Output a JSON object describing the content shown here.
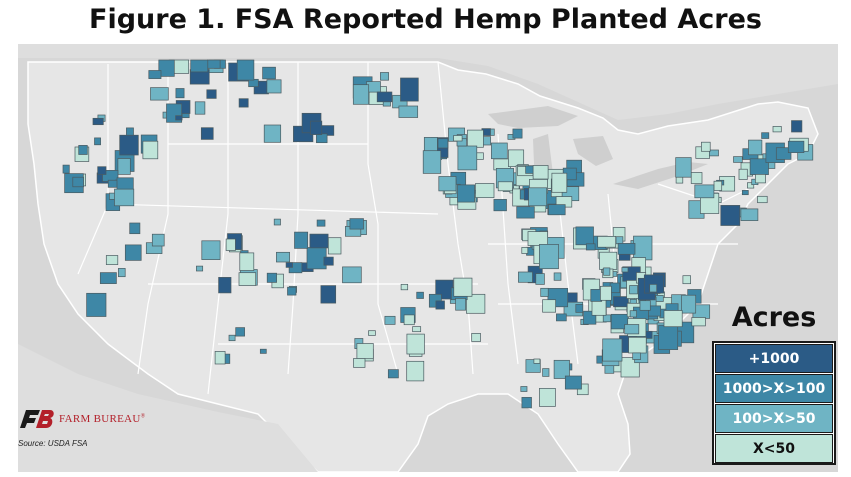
{
  "title": "Figure 1. FSA Reported Hemp Planted Acres",
  "colors": {
    "land": "#e6e6e6",
    "water": "#d2d2d2",
    "borders": "#ffffff",
    "tier_1000_plus": "#2b5b86",
    "tier_100_1000": "#3e87a6",
    "tier_50_100": "#6fb4c4",
    "tier_under_50": "#bfe4d9",
    "county_outline": "#4a5a60"
  },
  "legend": {
    "title": "Acres",
    "items": [
      {
        "label": "+1000",
        "color": "#2b5b86",
        "text_color": "#ffffff"
      },
      {
        "label": "1000>X>100",
        "color": "#3e87a6",
        "text_color": "#ffffff"
      },
      {
        "label": "100>X>50",
        "color": "#6fb4c4",
        "text_color": "#ffffff"
      },
      {
        "label": "X<50",
        "color": "#bfe4d9",
        "text_color": "#111111"
      }
    ]
  },
  "logo": {
    "name": "FARM BUREAU",
    "mark": "FB",
    "reg": "®"
  },
  "source": "Source:  USDA FSA"
}
